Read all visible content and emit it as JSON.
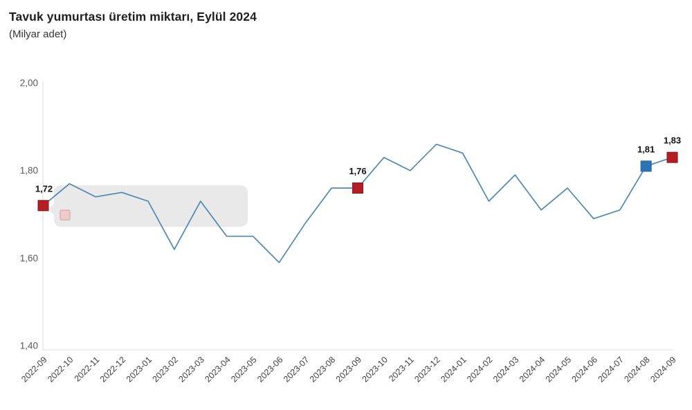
{
  "header": {
    "title": "Tavuk yumurtası üretim miktarı, Eylül 2024",
    "subtitle": "(Milyar adet)"
  },
  "chart_data": {
    "type": "line",
    "title": "Tavuk yumurtası üretim miktarı, Eylül 2024",
    "subtitle": "(Milyar adet)",
    "categories": [
      "2022-09",
      "2022-10",
      "2022-11",
      "2022-12",
      "2023-01",
      "2023-02",
      "2023-03",
      "2023-04",
      "2023-05",
      "2023-06",
      "2023-07",
      "2023-08",
      "2023-09",
      "2023-10",
      "2023-11",
      "2023-12",
      "2024-01",
      "2024-02",
      "2024-03",
      "2024-04",
      "2024-05",
      "2024-06",
      "2024-07",
      "2024-08",
      "2024-09"
    ],
    "series": [
      {
        "name": "Tavuk yumurtası üretim miktarı (Milyar adet)",
        "values": [
          1.72,
          1.77,
          1.74,
          1.75,
          1.73,
          1.62,
          1.73,
          1.65,
          1.65,
          1.59,
          1.68,
          1.76,
          1.76,
          1.83,
          1.8,
          1.86,
          1.84,
          1.73,
          1.79,
          1.71,
          1.76,
          1.69,
          1.71,
          1.81,
          1.83
        ]
      }
    ],
    "ylim": [
      1.4,
      2.0
    ],
    "yticks": [
      {
        "label": "2,00",
        "value": 2.0
      },
      {
        "label": "1,80",
        "value": 1.8
      },
      {
        "label": "1,60",
        "value": 1.6
      },
      {
        "label": "1,40",
        "value": 1.4
      }
    ],
    "grid": false,
    "legend": false,
    "xlabel": "",
    "ylabel": "",
    "annotated_points": [
      {
        "index": 0,
        "category": "2022-09",
        "value": 1.72,
        "label": "1,72",
        "marker": "red"
      },
      {
        "index": 12,
        "category": "2023-09",
        "value": 1.76,
        "label": "1,76",
        "marker": "red"
      },
      {
        "index": 23,
        "category": "2024-08",
        "value": 1.81,
        "label": "1,81",
        "marker": "blue"
      },
      {
        "index": 24,
        "category": "2024-09",
        "value": 1.83,
        "label": "1,83",
        "marker": "red"
      }
    ],
    "colors": {
      "line": "#4c87b3",
      "marker_red": "#b21e24",
      "marker_red_stroke": "#8f1319",
      "marker_blue": "#2e74b5",
      "marker_blue_stroke": "#25629b",
      "axis": "#d9d9d9",
      "ytick_text": "#595959",
      "xtick_text": "#3d3d3d",
      "point_label_text": "#111111"
    }
  },
  "artifact_tooltip": {
    "visible": true,
    "fill": "#e9e9e9",
    "marker_fill": "#eecccb",
    "marker_stroke": "#ddafae"
  }
}
